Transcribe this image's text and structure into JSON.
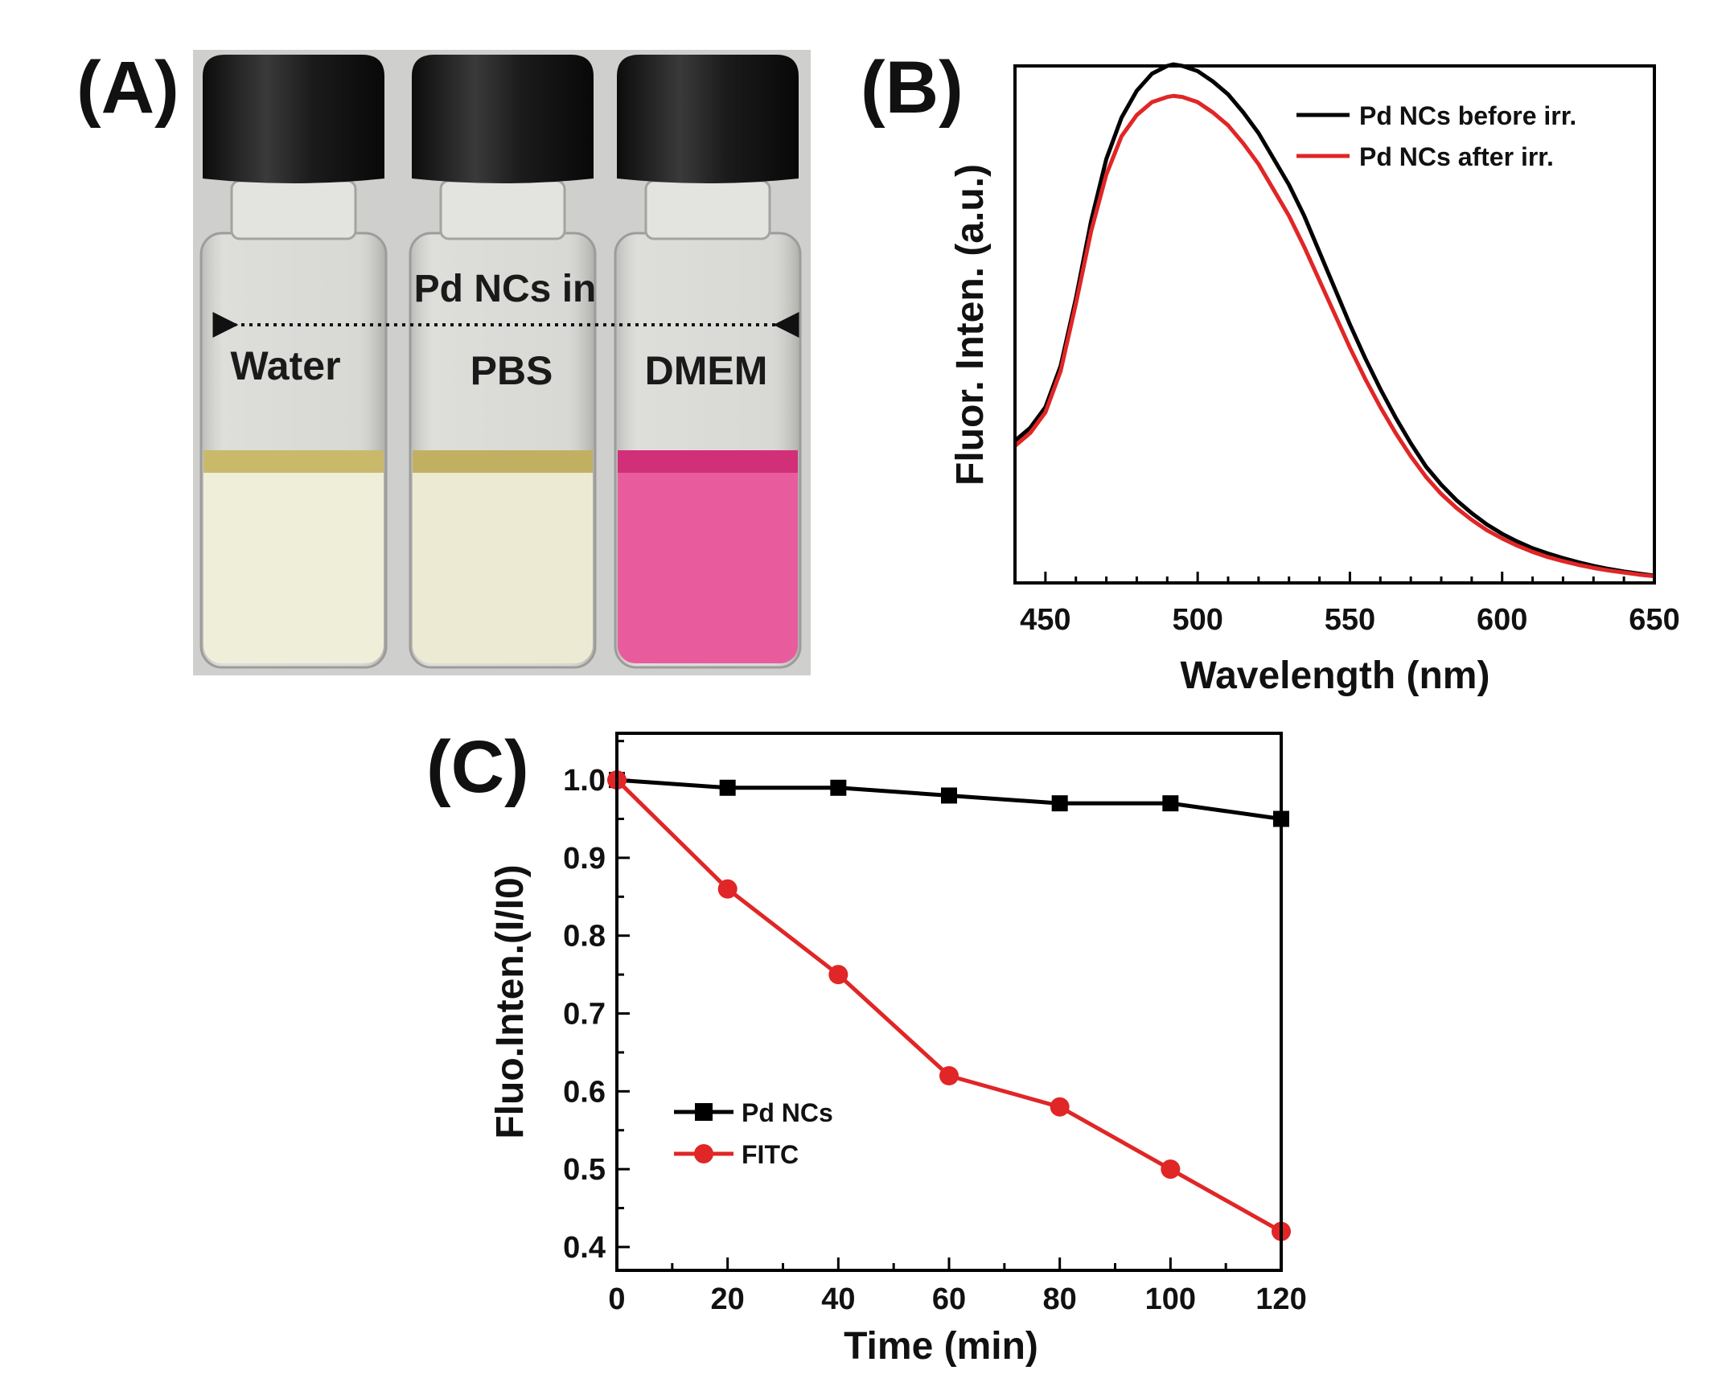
{
  "panels": {
    "a": {
      "letter": "(A)",
      "caption": "Pd NCs in",
      "vials": [
        {
          "label": "Water",
          "liquid_color": "#efeed9",
          "meniscus_color": "#c9b96a"
        },
        {
          "label": "PBS",
          "liquid_color": "#ecead2",
          "meniscus_color": "#c2b062"
        },
        {
          "label": "DMEM",
          "liquid_color": "#e85c9e",
          "meniscus_color": "#d22f79"
        }
      ],
      "cap_color": "#1e1e1e",
      "background_color": "#cfcfcd"
    },
    "b": {
      "letter": "(B)"
    },
    "c": {
      "letter": "(C)"
    }
  },
  "chart_data": [
    {
      "id": "B",
      "type": "line",
      "title": "",
      "xlabel": "Wavelength (nm)",
      "ylabel": "Fluor. Inten. (a.u.)",
      "xlim": [
        440,
        650
      ],
      "ylim": [
        0,
        1
      ],
      "xticks": [
        450,
        500,
        550,
        600,
        650
      ],
      "x_minor_step": 10,
      "y_ticks_shown": false,
      "legend_position": "top-right",
      "series": [
        {
          "name": "Pd NCs before irr.",
          "color": "#000000",
          "x": [
            440,
            445,
            450,
            455,
            460,
            465,
            470,
            475,
            480,
            485,
            490,
            492,
            495,
            500,
            505,
            510,
            515,
            520,
            525,
            530,
            535,
            540,
            545,
            550,
            555,
            560,
            565,
            570,
            575,
            580,
            585,
            590,
            595,
            600,
            605,
            610,
            615,
            620,
            625,
            630,
            635,
            640,
            645,
            650
          ],
          "y": [
            0.275,
            0.3,
            0.34,
            0.42,
            0.55,
            0.7,
            0.82,
            0.9,
            0.952,
            0.985,
            1.0,
            1.003,
            1.0,
            0.99,
            0.97,
            0.945,
            0.91,
            0.87,
            0.82,
            0.77,
            0.71,
            0.64,
            0.57,
            0.5,
            0.435,
            0.375,
            0.32,
            0.27,
            0.225,
            0.19,
            0.16,
            0.135,
            0.113,
            0.095,
            0.08,
            0.067,
            0.057,
            0.048,
            0.04,
            0.033,
            0.027,
            0.022,
            0.018,
            0.014
          ]
        },
        {
          "name": "Pd NCs after irr.",
          "color": "#e02626",
          "x": [
            440,
            445,
            450,
            455,
            460,
            465,
            470,
            475,
            480,
            485,
            490,
            492,
            495,
            500,
            505,
            510,
            515,
            520,
            525,
            530,
            535,
            540,
            545,
            550,
            555,
            560,
            565,
            570,
            575,
            580,
            585,
            590,
            595,
            600,
            605,
            610,
            615,
            620,
            625,
            630,
            635,
            640,
            645,
            650
          ],
          "y": [
            0.265,
            0.29,
            0.33,
            0.41,
            0.54,
            0.68,
            0.79,
            0.864,
            0.905,
            0.93,
            0.94,
            0.942,
            0.94,
            0.93,
            0.91,
            0.885,
            0.85,
            0.81,
            0.76,
            0.71,
            0.65,
            0.585,
            0.52,
            0.455,
            0.395,
            0.34,
            0.29,
            0.245,
            0.205,
            0.172,
            0.145,
            0.122,
            0.102,
            0.086,
            0.072,
            0.06,
            0.05,
            0.042,
            0.035,
            0.029,
            0.024,
            0.02,
            0.016,
            0.013
          ]
        }
      ]
    },
    {
      "id": "C",
      "type": "line",
      "title": "",
      "xlabel": "Time (min)",
      "ylabel": "Fluo.Inten.(I/I0)",
      "xlim": [
        0,
        120
      ],
      "ylim": [
        0.37,
        1.06
      ],
      "xticks": [
        0,
        20,
        40,
        60,
        80,
        100,
        120
      ],
      "xtick_labels": [
        "0",
        "20",
        "40",
        "60",
        "80",
        "100",
        "120"
      ],
      "yticks": [
        0.4,
        0.5,
        0.6,
        0.7,
        0.8,
        0.9,
        1.0
      ],
      "ytick_labels": [
        "0.4",
        "0.5",
        "0.6",
        "0.7",
        "0.8",
        "0.9",
        "1.0"
      ],
      "x_minor_step": 10,
      "y_minor_step": 0.05,
      "legend_position": "lower-left",
      "series": [
        {
          "name": "Pd NCs",
          "color": "#000000",
          "marker": "square",
          "x": [
            0,
            20,
            40,
            60,
            80,
            100,
            120
          ],
          "y": [
            1.0,
            0.99,
            0.99,
            0.98,
            0.97,
            0.97,
            0.95
          ]
        },
        {
          "name": "FITC",
          "color": "#e02626",
          "marker": "circle",
          "x": [
            0,
            20,
            40,
            60,
            80,
            100,
            120
          ],
          "y": [
            1.0,
            0.86,
            0.75,
            0.62,
            0.58,
            0.5,
            0.42
          ]
        }
      ]
    }
  ]
}
